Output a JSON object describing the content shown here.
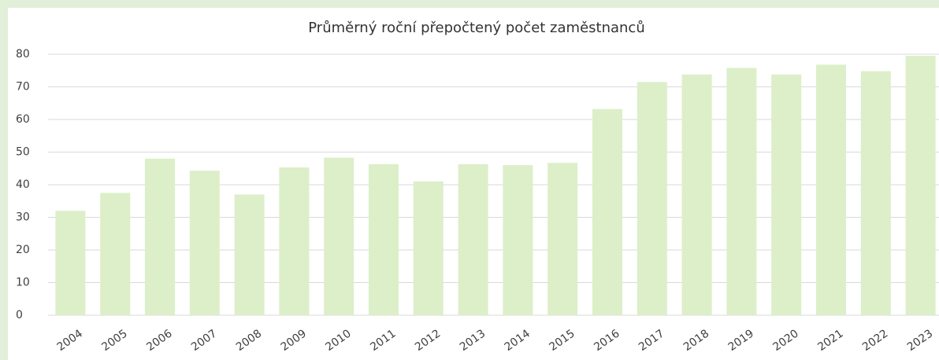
{
  "chart_data": {
    "type": "bar",
    "title": "Průměrný  roční přepočtený počet zaměstnanců",
    "categories": [
      "2004",
      "2005",
      "2006",
      "2007",
      "2008",
      "2009",
      "2010",
      "2011",
      "2012",
      "2013",
      "2014",
      "2015",
      "2016",
      "2017",
      "2018",
      "2019",
      "2020",
      "2021",
      "2022",
      "2023"
    ],
    "values": [
      32,
      37.5,
      48,
      44.3,
      37,
      45.3,
      48.3,
      46.3,
      41,
      46.3,
      46,
      46.7,
      63.2,
      71.5,
      73.8,
      75.8,
      73.8,
      76.8,
      74.8,
      79.5
    ],
    "color": "#dcefc9",
    "ylim": [
      0,
      80
    ],
    "yticks": [
      0,
      10,
      20,
      30,
      40,
      50,
      60,
      70,
      80
    ],
    "grid": true
  }
}
